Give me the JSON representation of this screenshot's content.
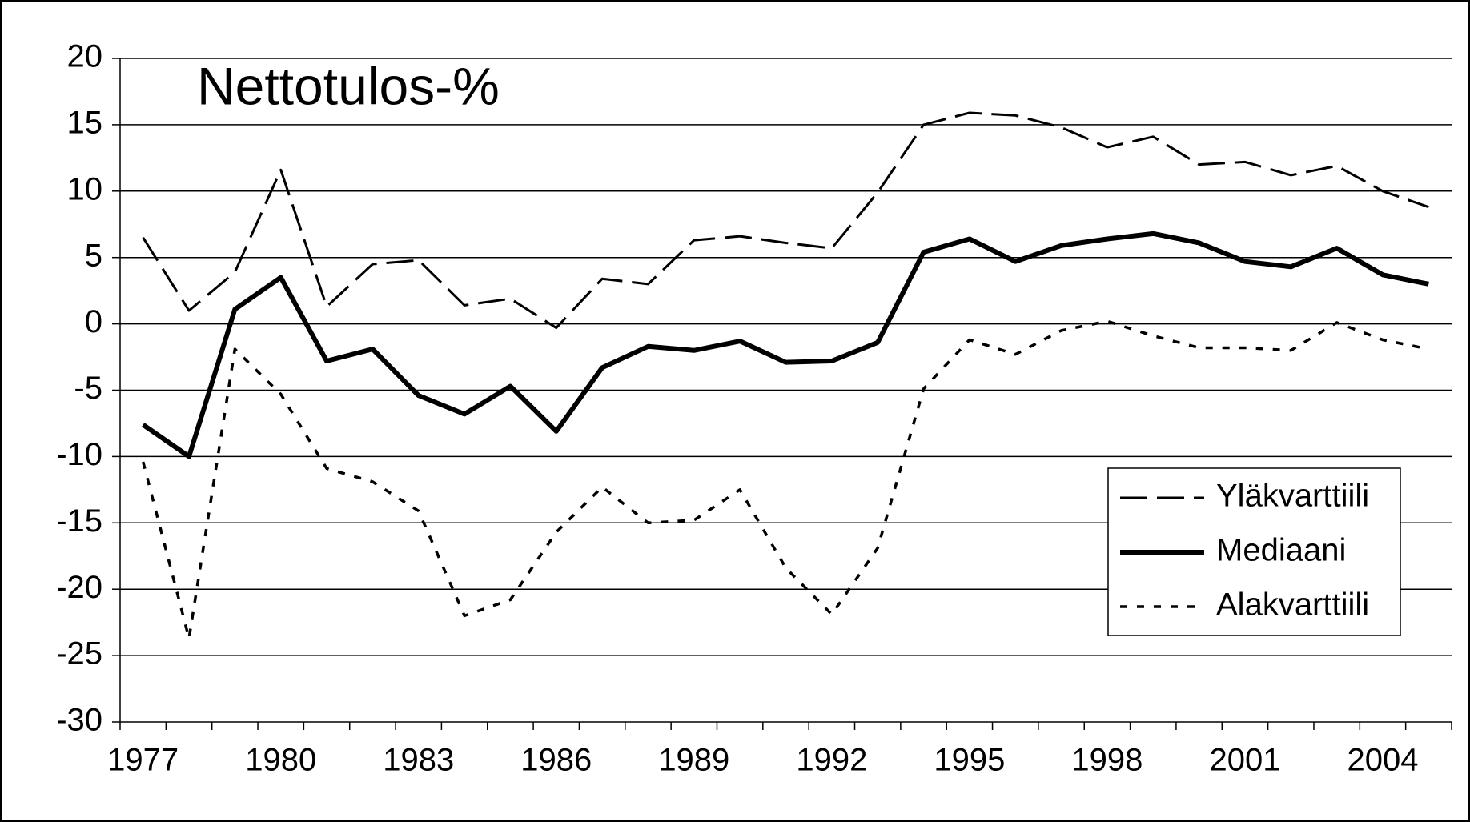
{
  "chart_data": {
    "type": "line",
    "title": "Nettotulos-%",
    "categories": [
      "1977",
      null,
      null,
      "1980",
      null,
      null,
      "1983",
      null,
      null,
      "1986",
      null,
      null,
      "1989",
      null,
      null,
      "1992",
      null,
      null,
      "1995",
      null,
      null,
      "1998",
      null,
      null,
      "2001",
      null,
      null,
      "2004",
      null
    ],
    "series": [
      {
        "name": "Yläkvarttiili",
        "color": "#000000",
        "dash": "dashed",
        "values": [
          6.5,
          1.0,
          3.9,
          11.6,
          1.3,
          4.5,
          4.8,
          1.4,
          1.9,
          -0.3,
          3.4,
          3.0,
          6.3,
          6.6,
          6.1,
          5.7,
          9.9,
          15.0,
          15.9,
          15.7,
          14.8,
          13.3,
          14.1,
          12.0,
          12.2,
          11.2,
          11.9,
          10.0,
          8.8
        ]
      },
      {
        "name": "Mediaani",
        "color": "#000000",
        "dash": "solid",
        "values": [
          -7.6,
          -10.0,
          1.1,
          3.5,
          -2.8,
          -1.9,
          -5.4,
          -6.8,
          -4.7,
          -8.1,
          -3.3,
          -1.7,
          -2.0,
          -1.3,
          -2.9,
          -2.8,
          -1.4,
          5.4,
          6.4,
          4.7,
          5.9,
          6.4,
          6.8,
          6.1,
          4.7,
          4.3,
          5.7,
          3.7,
          3.0
        ]
      },
      {
        "name": "Alakvarttiili",
        "color": "#000000",
        "dash": "dotted",
        "values": [
          -10.4,
          -23.7,
          -1.9,
          -5.3,
          -10.9,
          -11.9,
          -14.1,
          -22.0,
          -20.8,
          -15.7,
          -12.3,
          -15.0,
          -14.8,
          -12.5,
          -18.4,
          -21.9,
          -16.9,
          -4.9,
          -1.2,
          -2.3,
          -0.5,
          0.2,
          -0.9,
          -1.8,
          -1.8,
          -2.0,
          0.1,
          -1.2,
          -1.9
        ]
      }
    ],
    "ylim": [
      -30,
      20
    ],
    "yticks": [
      -30,
      -25,
      -20,
      -15,
      -10,
      -5,
      0,
      5,
      10,
      15,
      20
    ],
    "grid": true,
    "legend": "lower right"
  }
}
